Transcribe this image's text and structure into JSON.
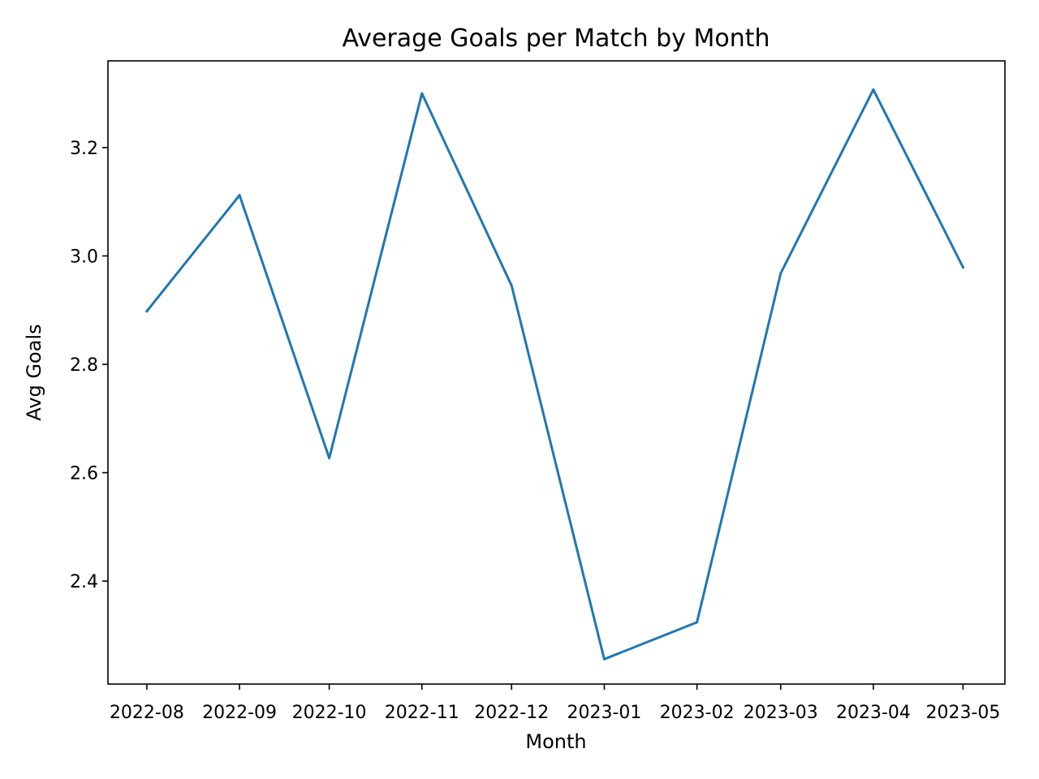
{
  "chart_data": {
    "type": "line",
    "title": "Average Goals per Match by Month",
    "xlabel": "Month",
    "ylabel": "Avg Goals",
    "categories": [
      "2022-08",
      "2022-09",
      "2022-10",
      "2022-11",
      "2022-12",
      "2023-01",
      "2023-02",
      "2023-03",
      "2023-04",
      "2023-05"
    ],
    "x": [
      "2022-08-01",
      "2022-09-01",
      "2022-10-01",
      "2022-11-01",
      "2022-12-01",
      "2023-01-01",
      "2023-02-01",
      "2023-03-01",
      "2023-04-01",
      "2023-05-01"
    ],
    "series": [
      {
        "values": [
          2.898,
          3.112,
          2.627,
          3.3,
          2.945,
          2.256,
          2.324,
          2.968,
          3.307,
          2.979
        ],
        "color": "#1f77b4"
      }
    ],
    "y_ticks": [
      "2.4",
      "2.6",
      "2.8",
      "3.0",
      "3.2"
    ],
    "ylim": [
      2.21,
      3.36
    ],
    "xlim": [
      "2022-07-19",
      "2023-05-15"
    ],
    "grid": false,
    "legend": "none"
  }
}
